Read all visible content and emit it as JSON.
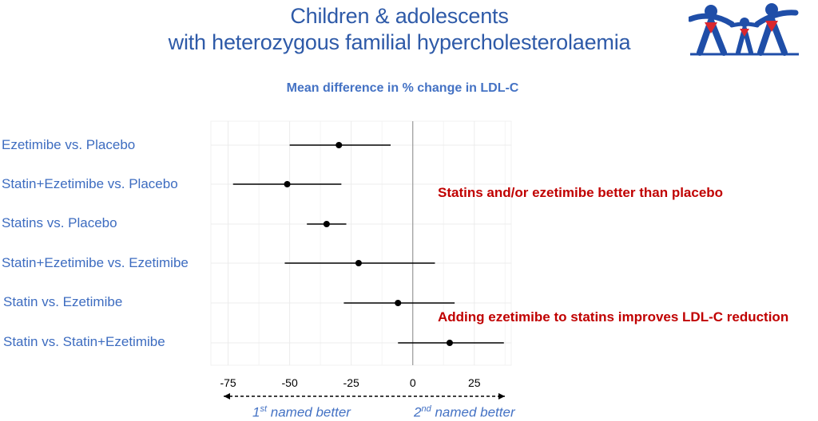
{
  "title_line1": "Children & adolescents",
  "title_line2": "with heterozygous familial hypercholesterolaemia",
  "annotations": {
    "placebo": "Statins and/or ezetimibe better than placebo",
    "adding": "Adding ezetimibe to statins improves LDL-C reduction"
  },
  "direction": {
    "left_sup": "st",
    "left_prefix": "1",
    "left_rest": " named better",
    "right_prefix": "2",
    "right_sup": "nd",
    "right_rest": " named better"
  },
  "colors": {
    "title": "#2e5aa8",
    "labels": "#3d6cc0",
    "annotation": "#c00000",
    "points": "#000000",
    "logo_blue": "#1f4ea8",
    "logo_red": "#d9262e"
  },
  "chart_data": {
    "type": "forest",
    "title": "Mean difference in % change in LDL-C",
    "xlabel": "",
    "xlim": [
      -82,
      40
    ],
    "xticks": [
      -75,
      -50,
      -25,
      0,
      25
    ],
    "reference_line": 0,
    "grid": true,
    "categories": [
      "Ezetimibe vs. Placebo",
      "Statin+Ezetimibe vs. Placebo",
      "Statins vs. Placebo",
      "Statin+Ezetimibe vs. Ezetimibe",
      "Statin vs. Ezetimibe",
      "Statin vs. Statin+Ezetimibe"
    ],
    "estimates": [
      -30,
      -51,
      -35,
      -22,
      -6,
      15
    ],
    "ci_low": [
      -50,
      -73,
      -43,
      -52,
      -28,
      -6
    ],
    "ci_high": [
      -9,
      -29,
      -27,
      9,
      17,
      37
    ]
  }
}
